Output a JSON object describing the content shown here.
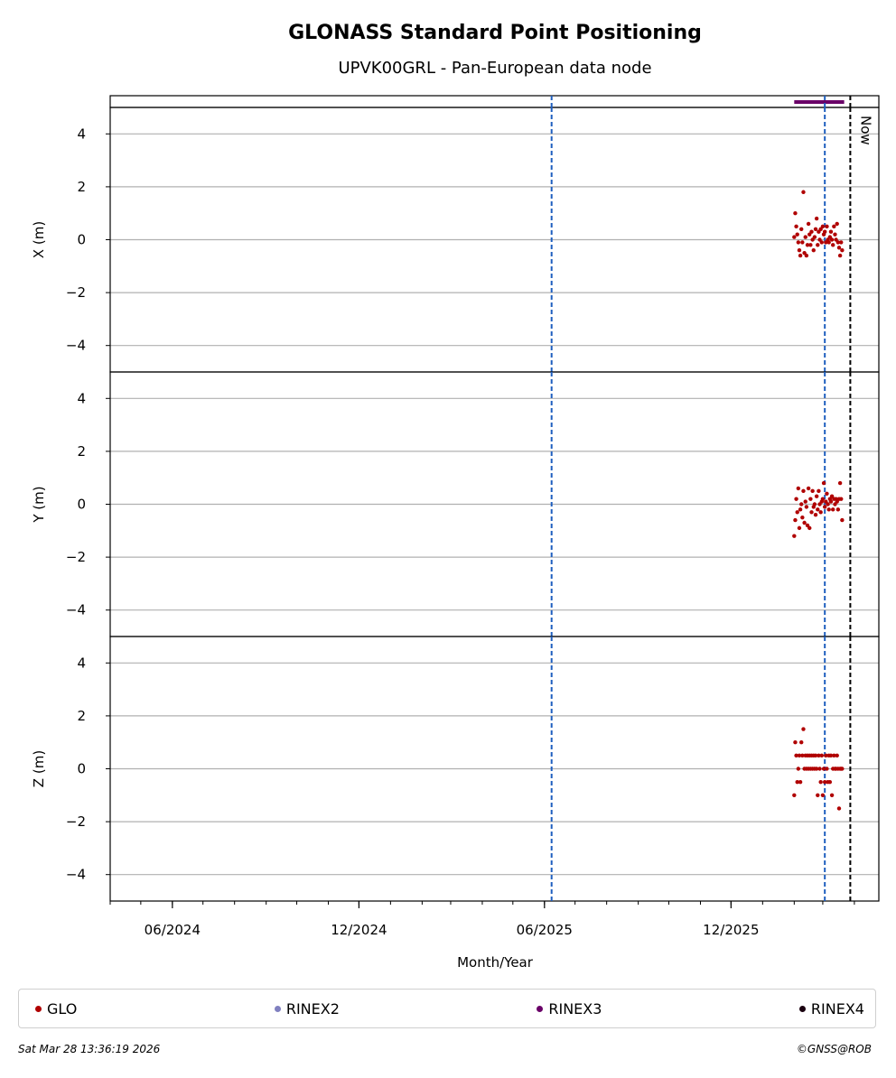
{
  "chart_data": {
    "type": "scatter",
    "title": "GLONASS Standard Point Positioning",
    "subtitle": "UPVK00GRL - Pan-European data node",
    "xlabel": "Month/Year",
    "x_tick_labels": [
      "06/2024",
      "12/2024",
      "06/2025",
      "12/2025"
    ],
    "x_tick_dates": [
      "2024-06-01",
      "2024-12-01",
      "2025-06-01",
      "2025-12-01"
    ],
    "xlim": [
      "2024-04-01",
      "2026-04-25"
    ],
    "now_label": "Now",
    "now_date": "2026-03-28",
    "vertical_lines": [
      "2025-06-08",
      "2026-03-03"
    ],
    "rinex3_span": [
      "2026-02-01",
      "2026-03-22"
    ],
    "panels": [
      {
        "ylabel": "X (m)",
        "ylim": [
          -5,
          5
        ],
        "yticks": [
          4,
          2,
          0,
          -2,
          -4
        ],
        "series": [
          {
            "name": "GLO",
            "color": "#b00000",
            "points": [
              [
                "2026-02-01",
                0.1
              ],
              [
                "2026-02-02",
                1.0
              ],
              [
                "2026-02-03",
                0.5
              ],
              [
                "2026-02-04",
                0.2
              ],
              [
                "2026-02-05",
                -0.1
              ],
              [
                "2026-02-06",
                -0.4
              ],
              [
                "2026-02-07",
                -0.6
              ],
              [
                "2026-02-08",
                0.4
              ],
              [
                "2026-02-09",
                -0.1
              ],
              [
                "2026-02-10",
                1.8
              ],
              [
                "2026-02-11",
                -0.5
              ],
              [
                "2026-02-12",
                0.1
              ],
              [
                "2026-02-13",
                -0.6
              ],
              [
                "2026-02-14",
                -0.2
              ],
              [
                "2026-02-15",
                0.6
              ],
              [
                "2026-02-16",
                0.2
              ],
              [
                "2026-02-17",
                -0.2
              ],
              [
                "2026-02-18",
                0.3
              ],
              [
                "2026-02-19",
                0.0
              ],
              [
                "2026-02-20",
                -0.4
              ],
              [
                "2026-02-21",
                0.1
              ],
              [
                "2026-02-22",
                0.4
              ],
              [
                "2026-02-23",
                0.8
              ],
              [
                "2026-02-24",
                -0.2
              ],
              [
                "2026-02-25",
                0.3
              ],
              [
                "2026-02-26",
                0.0
              ],
              [
                "2026-02-27",
                0.4
              ],
              [
                "2026-02-28",
                -0.1
              ],
              [
                "2026-03-01",
                0.5
              ],
              [
                "2026-03-02",
                0.2
              ],
              [
                "2026-03-03",
                0.3
              ],
              [
                "2026-03-04",
                -0.1
              ],
              [
                "2026-03-05",
                0.5
              ],
              [
                "2026-03-06",
                0.0
              ],
              [
                "2026-03-07",
                -0.1
              ],
              [
                "2026-03-08",
                0.1
              ],
              [
                "2026-03-09",
                0.3
              ],
              [
                "2026-03-10",
                0.0
              ],
              [
                "2026-03-11",
                -0.2
              ],
              [
                "2026-03-12",
                0.5
              ],
              [
                "2026-03-13",
                0.2
              ],
              [
                "2026-03-14",
                0.0
              ],
              [
                "2026-03-15",
                0.6
              ],
              [
                "2026-03-16",
                -0.1
              ],
              [
                "2026-03-17",
                -0.3
              ],
              [
                "2026-03-18",
                -0.6
              ],
              [
                "2026-03-19",
                -0.1
              ],
              [
                "2026-03-20",
                -0.4
              ]
            ]
          }
        ]
      },
      {
        "ylabel": "Y (m)",
        "ylim": [
          -5,
          5
        ],
        "yticks": [
          4,
          2,
          0,
          -2,
          -4
        ],
        "series": [
          {
            "name": "GLO",
            "color": "#b00000",
            "points": [
              [
                "2026-02-01",
                -1.2
              ],
              [
                "2026-02-02",
                -0.6
              ],
              [
                "2026-02-03",
                0.2
              ],
              [
                "2026-02-04",
                -0.3
              ],
              [
                "2026-02-05",
                0.6
              ],
              [
                "2026-02-06",
                -0.9
              ],
              [
                "2026-02-07",
                -0.2
              ],
              [
                "2026-02-08",
                0.0
              ],
              [
                "2026-02-09",
                -0.5
              ],
              [
                "2026-02-10",
                0.5
              ],
              [
                "2026-02-11",
                -0.7
              ],
              [
                "2026-02-12",
                0.1
              ],
              [
                "2026-02-13",
                -0.1
              ],
              [
                "2026-02-14",
                -0.8
              ],
              [
                "2026-02-15",
                0.6
              ],
              [
                "2026-02-16",
                -0.9
              ],
              [
                "2026-02-17",
                0.2
              ],
              [
                "2026-02-18",
                -0.3
              ],
              [
                "2026-02-19",
                0.5
              ],
              [
                "2026-02-20",
                -0.1
              ],
              [
                "2026-02-21",
                0.0
              ],
              [
                "2026-02-22",
                -0.4
              ],
              [
                "2026-02-23",
                0.3
              ],
              [
                "2026-02-24",
                -0.2
              ],
              [
                "2026-02-25",
                0.5
              ],
              [
                "2026-02-26",
                0.0
              ],
              [
                "2026-02-27",
                -0.3
              ],
              [
                "2026-02-28",
                0.1
              ],
              [
                "2026-03-01",
                0.2
              ],
              [
                "2026-03-02",
                0.8
              ],
              [
                "2026-03-03",
                -0.1
              ],
              [
                "2026-03-04",
                0.1
              ],
              [
                "2026-03-05",
                0.4
              ],
              [
                "2026-03-06",
                0.0
              ],
              [
                "2026-03-07",
                -0.2
              ],
              [
                "2026-03-08",
                0.2
              ],
              [
                "2026-03-09",
                0.1
              ],
              [
                "2026-03-10",
                0.3
              ],
              [
                "2026-03-11",
                -0.2
              ],
              [
                "2026-03-12",
                0.2
              ],
              [
                "2026-03-13",
                0.0
              ],
              [
                "2026-03-14",
                0.2
              ],
              [
                "2026-03-15",
                0.1
              ],
              [
                "2026-03-16",
                -0.2
              ],
              [
                "2026-03-17",
                0.2
              ],
              [
                "2026-03-18",
                0.8
              ],
              [
                "2026-03-19",
                0.2
              ],
              [
                "2026-03-20",
                -0.6
              ]
            ]
          }
        ]
      },
      {
        "ylabel": "Z (m)",
        "ylim": [
          -5,
          5
        ],
        "yticks": [
          4,
          2,
          0,
          -2,
          -4
        ],
        "series": [
          {
            "name": "GLO",
            "color": "#b00000",
            "points": [
              [
                "2026-02-01",
                -1.0
              ],
              [
                "2026-02-02",
                1.0
              ],
              [
                "2026-02-03",
                0.5
              ],
              [
                "2026-02-04",
                -0.5
              ],
              [
                "2026-02-05",
                0.0
              ],
              [
                "2026-02-06",
                0.5
              ],
              [
                "2026-02-07",
                -0.5
              ],
              [
                "2026-02-08",
                1.0
              ],
              [
                "2026-02-09",
                0.5
              ],
              [
                "2026-02-10",
                1.5
              ],
              [
                "2026-02-11",
                0.0
              ],
              [
                "2026-02-12",
                0.5
              ],
              [
                "2026-02-13",
                0.0
              ],
              [
                "2026-02-14",
                0.5
              ],
              [
                "2026-02-15",
                0.0
              ],
              [
                "2026-02-16",
                0.5
              ],
              [
                "2026-02-17",
                0.0
              ],
              [
                "2026-02-18",
                0.5
              ],
              [
                "2026-02-19",
                0.0
              ],
              [
                "2026-02-20",
                0.5
              ],
              [
                "2026-02-21",
                0.0
              ],
              [
                "2026-02-22",
                0.5
              ],
              [
                "2026-02-23",
                0.0
              ],
              [
                "2026-02-24",
                -1.0
              ],
              [
                "2026-02-25",
                0.5
              ],
              [
                "2026-02-26",
                0.0
              ],
              [
                "2026-02-27",
                -0.5
              ],
              [
                "2026-02-28",
                0.5
              ],
              [
                "2026-03-01",
                -1.0
              ],
              [
                "2026-03-02",
                0.0
              ],
              [
                "2026-03-03",
                -0.5
              ],
              [
                "2026-03-04",
                0.5
              ],
              [
                "2026-03-05",
                0.0
              ],
              [
                "2026-03-06",
                -0.5
              ],
              [
                "2026-03-07",
                0.5
              ],
              [
                "2026-03-08",
                -0.5
              ],
              [
                "2026-03-09",
                0.5
              ],
              [
                "2026-03-10",
                -1.0
              ],
              [
                "2026-03-11",
                0.0
              ],
              [
                "2026-03-12",
                0.5
              ],
              [
                "2026-03-13",
                0.0
              ],
              [
                "2026-03-14",
                0.0
              ],
              [
                "2026-03-15",
                0.5
              ],
              [
                "2026-03-16",
                0.0
              ],
              [
                "2026-03-17",
                -1.5
              ],
              [
                "2026-03-18",
                0.0
              ],
              [
                "2026-03-19",
                0.0
              ],
              [
                "2026-03-20",
                0.0
              ]
            ]
          }
        ]
      }
    ],
    "legend_position": "bottom",
    "legend": [
      {
        "name": "GLO",
        "color": "#b00000"
      },
      {
        "name": "RINEX2",
        "color": "#8080c0"
      },
      {
        "name": "RINEX3",
        "color": "#6a0068"
      },
      {
        "name": "RINEX4",
        "color": "#1a0010"
      }
    ],
    "grid": true,
    "colors": {
      "marker": "#b00000",
      "vline": "#1f5fbf",
      "now_line": "#000000",
      "rinex3": "#6a0068"
    }
  },
  "footer": {
    "timestamp": "Sat Mar 28 13:36:19 2026",
    "credit": "©GNSS@ROB"
  }
}
